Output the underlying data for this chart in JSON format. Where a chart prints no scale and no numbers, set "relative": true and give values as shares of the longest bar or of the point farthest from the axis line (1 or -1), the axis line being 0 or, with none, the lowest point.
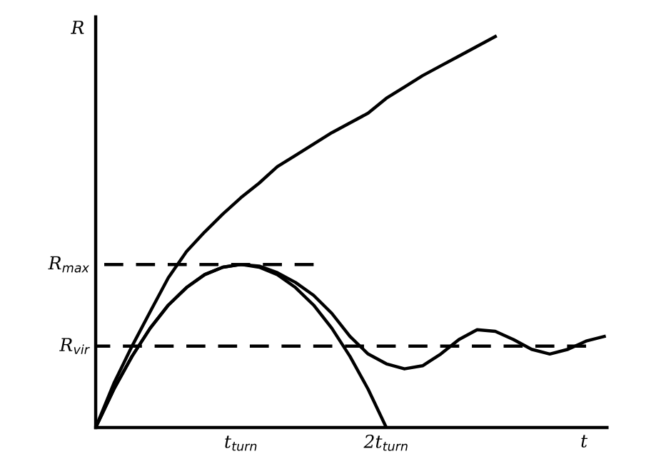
{
  "chart_data": {
    "type": "line",
    "relative": true,
    "xlabel": "t",
    "ylabel": "R",
    "legend": false,
    "marker": "none",
    "categories": [
      null,
      null,
      null,
      null,
      null,
      null,
      null,
      null,
      "t$_{turn}$",
      null,
      null,
      null,
      null,
      null,
      null,
      null,
      "2t$_{turn}$",
      null,
      null,
      null,
      null,
      null,
      null,
      null,
      null,
      null,
      null,
      null,
      null
    ],
    "annotations": [
      "R$_{max}$",
      "R$_{vir}$"
    ],
    "series": [
      {
        "color": "#000000",
        "line_style": "solid",
        "values": [
          0,
          0.113,
          0.208,
          0.296,
          0.383,
          0.45,
          0.5,
          0.546,
          0.588,
          0.625,
          0.667,
          0.696,
          0.725,
          0.754,
          0.779,
          0.804,
          0.842,
          0.871,
          0.9,
          0.925,
          0.95,
          0.975,
          1.0,
          null,
          null,
          null,
          null,
          null,
          null
        ]
      },
      {
        "color": "#000000",
        "line_style": "solid",
        "values": [
          0,
          0.098,
          0.182,
          0.254,
          0.313,
          0.358,
          0.391,
          0.41,
          0.417,
          0.41,
          0.391,
          0.358,
          0.313,
          0.254,
          0.182,
          0.098,
          0,
          null,
          null,
          null,
          null,
          null,
          null,
          null,
          null,
          null,
          null,
          null,
          null
        ]
      },
      {
        "color": "#000000",
        "line_style": "solid",
        "values": [
          0,
          0.098,
          0.182,
          0.254,
          0.313,
          0.358,
          0.391,
          0.41,
          0.417,
          0.413,
          0.396,
          0.371,
          0.338,
          0.292,
          0.233,
          0.188,
          0.163,
          0.15,
          0.158,
          0.188,
          0.225,
          0.25,
          0.246,
          0.225,
          0.2,
          0.188,
          0.2,
          0.221,
          0.233
        ]
      },
      {
        "color": "#000000",
        "line_style": "dashed",
        "values": [
          0.417,
          0.417,
          0.417,
          0.417,
          0.417,
          0.417,
          0.417,
          0.417,
          0.417,
          0.417,
          0.417,
          0.417,
          0.417,
          null,
          null,
          null,
          null,
          null,
          null,
          null,
          null,
          null,
          null,
          null,
          null,
          null,
          null,
          null,
          null
        ]
      },
      {
        "color": "#000000",
        "line_style": "dashed",
        "values": [
          0.208,
          0.208,
          0.208,
          0.208,
          0.208,
          0.208,
          0.208,
          0.208,
          0.208,
          0.208,
          0.208,
          0.208,
          0.208,
          0.208,
          0.208,
          0.208,
          0.208,
          0.208,
          0.208,
          0.208,
          0.208,
          0.208,
          0.208,
          0.208,
          0.208,
          0.208,
          0.208,
          0.208,
          null
        ]
      }
    ]
  }
}
